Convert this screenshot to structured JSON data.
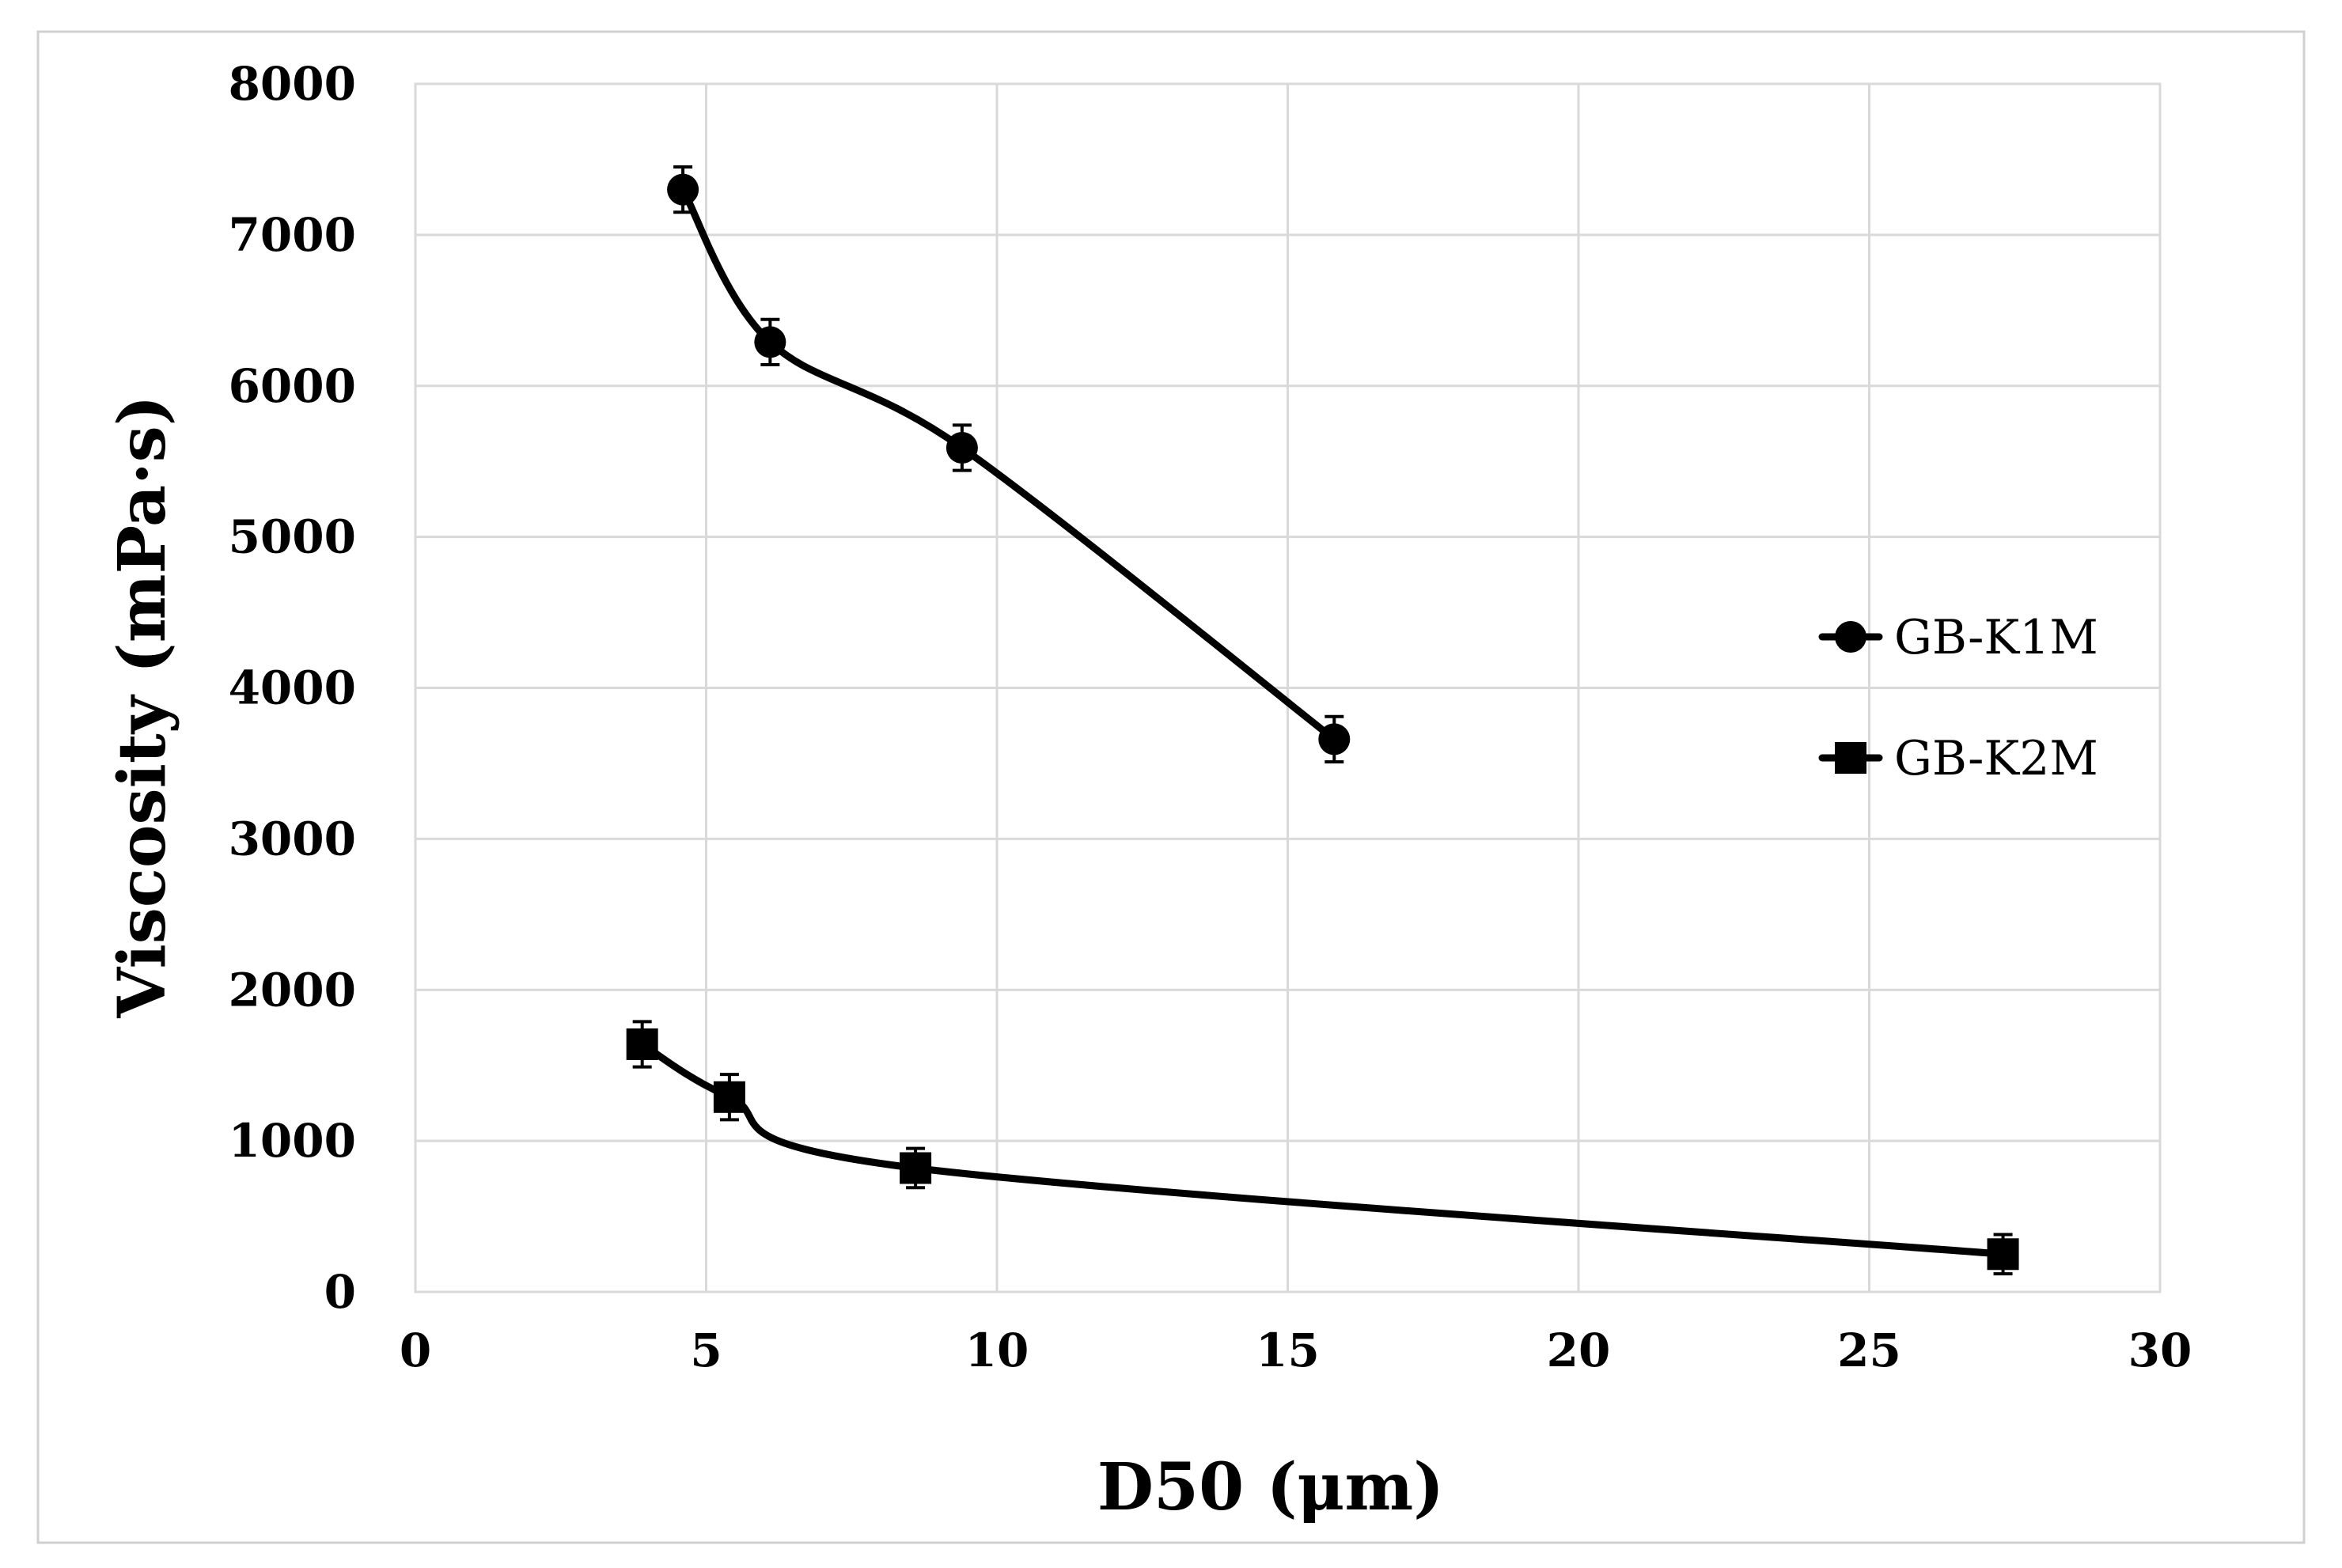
{
  "chart_data": {
    "type": "line",
    "title": "",
    "xlabel": "D50 (μm)",
    "ylabel": "Viscosity (mPa·s)",
    "xlim": [
      0,
      30
    ],
    "ylim": [
      0,
      8000
    ],
    "xticks": [
      0,
      5,
      10,
      15,
      20,
      25,
      30
    ],
    "yticks": [
      0,
      1000,
      2000,
      3000,
      4000,
      5000,
      6000,
      7000,
      8000
    ],
    "grid": true,
    "smooth": true,
    "legend_position": "right",
    "series": [
      {
        "name": "GB-K1M",
        "marker": "circle",
        "color": "#000000",
        "x": [
          4.6,
          6.1,
          9.4,
          15.8
        ],
        "y": [
          7300,
          6290,
          5590,
          3660
        ],
        "error": [
          150,
          150,
          150,
          150
        ]
      },
      {
        "name": "GB-K2M",
        "marker": "square",
        "color": "#000000",
        "x": [
          3.9,
          5.4,
          8.6,
          27.3
        ],
        "y": [
          1640,
          1290,
          820,
          250
        ],
        "error": [
          150,
          150,
          130,
          130
        ]
      }
    ]
  }
}
